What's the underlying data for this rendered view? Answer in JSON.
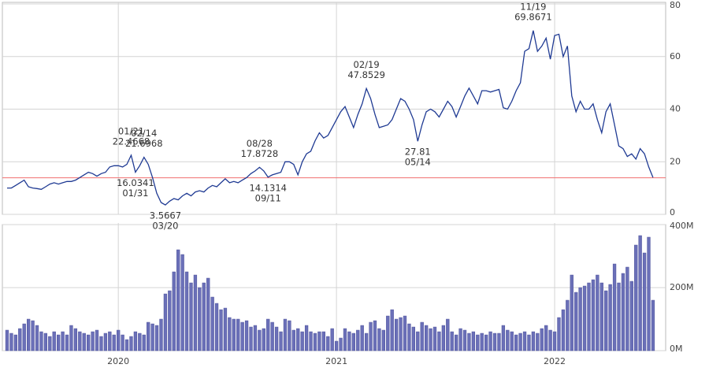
{
  "chart_data": {
    "type": "stock",
    "categories": [
      null,
      null,
      null,
      null,
      null,
      null,
      null,
      null,
      null,
      null,
      null,
      null,
      null,
      null,
      null,
      null,
      null,
      null,
      null,
      null,
      null,
      null,
      null,
      null,
      null,
      null,
      "2020",
      null,
      null,
      null,
      null,
      null,
      null,
      null,
      null,
      null,
      null,
      null,
      null,
      null,
      null,
      null,
      null,
      null,
      null,
      null,
      null,
      null,
      null,
      null,
      null,
      null,
      null,
      null,
      null,
      null,
      null,
      null,
      null,
      null,
      null,
      null,
      null,
      null,
      null,
      null,
      null,
      null,
      null,
      null,
      null,
      null,
      null,
      null,
      null,
      null,
      null,
      "2021",
      null,
      null,
      null,
      null,
      null,
      null,
      null,
      null,
      null,
      null,
      null,
      null,
      null,
      null,
      null,
      null,
      null,
      null,
      null,
      null,
      null,
      null,
      null,
      null,
      null,
      null,
      null,
      null,
      null,
      null,
      null,
      null,
      null,
      null,
      null,
      null,
      null,
      null,
      null,
      null,
      null,
      null,
      null,
      null,
      null,
      null,
      null,
      null,
      null,
      null,
      "2022",
      null,
      null,
      null,
      null,
      null,
      null,
      null,
      null,
      null,
      null,
      null,
      null,
      null,
      null,
      null,
      null,
      null,
      null,
      null,
      null,
      null,
      null
    ],
    "price": {
      "color": "#1f3a93",
      "values": [
        10,
        10,
        11,
        12,
        13,
        10.5,
        10,
        9.8,
        9.5,
        10.5,
        11.5,
        12,
        11.5,
        12,
        12.5,
        12.5,
        13,
        14,
        15,
        16,
        15.5,
        14.5,
        15.5,
        16,
        18,
        18.5,
        18.5,
        18,
        19,
        22.4668,
        16.0341,
        18.5,
        21.6968,
        19,
        14,
        8,
        4.5,
        3.5667,
        5,
        6,
        5.5,
        7,
        8,
        7,
        8.5,
        9,
        8.5,
        10,
        11,
        10.5,
        12,
        13.5,
        12,
        12.5,
        12,
        13,
        14,
        15.5,
        16.5,
        17.8728,
        16.5,
        14.1314,
        15,
        15.5,
        16,
        20,
        20,
        19,
        15,
        20,
        23,
        24,
        28,
        31,
        29,
        30,
        33,
        36,
        39,
        41,
        37,
        33,
        38,
        42,
        47.8529,
        44,
        38,
        33,
        33.5,
        34,
        36,
        40,
        44,
        43,
        40,
        36,
        27.81,
        34,
        39,
        40,
        39,
        37,
        40,
        43,
        41,
        37,
        41,
        45,
        48,
        45,
        42,
        47,
        47,
        46.5,
        47,
        47.5,
        40.5,
        40,
        43,
        47,
        50,
        62,
        63,
        69.8671,
        62,
        64,
        67,
        59,
        68,
        68.5,
        60,
        64,
        45,
        39,
        43,
        40,
        40,
        42,
        36,
        31,
        39,
        42,
        34,
        26,
        25,
        22,
        23,
        21,
        25,
        23,
        18,
        14
      ],
      "ylim": [
        0,
        80
      ],
      "yticks": [
        0,
        20,
        40,
        60,
        80
      ],
      "reference_line": {
        "value": 13.9,
        "color": "#f07070"
      },
      "annotations": [
        {
          "date": "01/21",
          "value": 22.4668
        },
        {
          "date": "01/31",
          "value": 16.0341
        },
        {
          "date": "02/14",
          "value": 21.6968
        },
        {
          "date": "03/20",
          "value": 3.5667
        },
        {
          "date": "08/28",
          "value": 17.8728
        },
        {
          "date": "09/11",
          "value": 14.1314
        },
        {
          "date": "02/19",
          "value": 47.8529
        },
        {
          "date": "05/14",
          "value": 27.81
        },
        {
          "date": "11/19",
          "value": 69.8671
        }
      ]
    },
    "volume": {
      "color": "#6b70b8",
      "values": [
        65,
        55,
        50,
        70,
        85,
        100,
        95,
        80,
        60,
        55,
        45,
        60,
        50,
        60,
        50,
        80,
        70,
        60,
        55,
        50,
        60,
        65,
        45,
        55,
        60,
        50,
        65,
        50,
        35,
        45,
        60,
        55,
        50,
        90,
        85,
        80,
        100,
        180,
        190,
        250,
        320,
        305,
        250,
        215,
        240,
        200,
        215,
        230,
        170,
        150,
        130,
        135,
        105,
        100,
        100,
        90,
        95,
        75,
        80,
        65,
        70,
        100,
        90,
        75,
        60,
        100,
        95,
        65,
        70,
        60,
        80,
        60,
        55,
        60,
        60,
        45,
        70,
        30,
        40,
        70,
        60,
        55,
        65,
        80,
        55,
        90,
        95,
        70,
        65,
        110,
        130,
        100,
        105,
        110,
        85,
        75,
        60,
        90,
        80,
        70,
        75,
        60,
        80,
        100,
        60,
        50,
        70,
        65,
        55,
        60,
        50,
        55,
        50,
        60,
        55,
        55,
        80,
        65,
        60,
        50,
        55,
        60,
        50,
        60,
        55,
        70,
        80,
        65,
        60,
        105,
        130,
        160,
        240,
        185,
        200,
        205,
        215,
        225,
        240,
        215,
        190,
        210,
        275,
        215,
        245,
        265,
        220,
        335,
        365,
        310,
        360,
        160
      ],
      "ylim": [
        0,
        400
      ],
      "yticks": [
        {
          "value": 0,
          "label": "0M"
        },
        {
          "value": 200,
          "label": "200M"
        },
        {
          "value": 400,
          "label": "400M"
        }
      ]
    },
    "grid": true
  }
}
